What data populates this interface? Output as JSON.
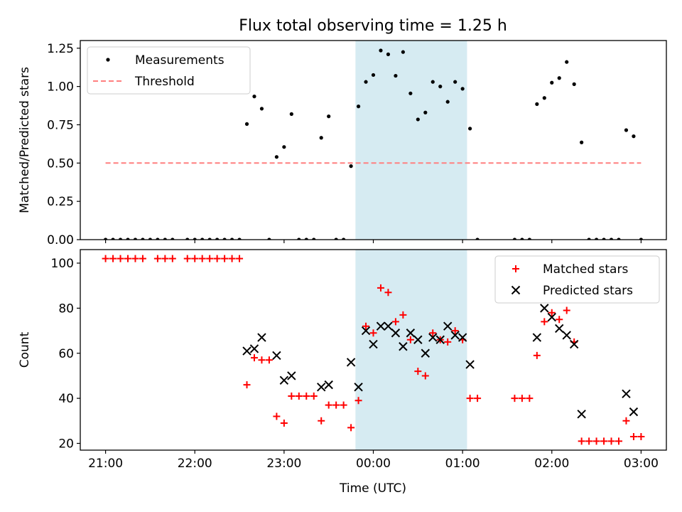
{
  "title": "Flux total observing time = 1.25 h",
  "xlabel": "Time (UTC)",
  "x_ticks": [
    "21:00",
    "22:00",
    "23:00",
    "00:00",
    "01:00",
    "02:00",
    "03:00"
  ],
  "colors": {
    "measurement": "#000000",
    "threshold": "#ff7f7f",
    "matched": "#ff0000",
    "predicted": "#000000",
    "observing_band": "#add8e6"
  },
  "chart_data": [
    {
      "type": "scatter",
      "ylabel": "Matched/Predicted stars",
      "xlim": [
        "20:43",
        "03:17"
      ],
      "ylim": [
        0,
        1.3
      ],
      "y_ticks": [
        "0.00",
        "0.25",
        "0.50",
        "0.75",
        "1.00",
        "1.25"
      ],
      "observing_window": [
        "23:48",
        "01:03"
      ],
      "legend_position": "upper-left",
      "series": [
        {
          "name": "Measurements",
          "marker": "dot",
          "points": [
            [
              "21:00",
              0
            ],
            [
              "21:05",
              0
            ],
            [
              "21:10",
              0
            ],
            [
              "21:15",
              0
            ],
            [
              "21:20",
              0
            ],
            [
              "21:25",
              0
            ],
            [
              "21:30",
              0
            ],
            [
              "21:35",
              0
            ],
            [
              "21:40",
              0
            ],
            [
              "21:45",
              0
            ],
            [
              "21:55",
              0
            ],
            [
              "22:00",
              0
            ],
            [
              "22:05",
              0
            ],
            [
              "22:10",
              0
            ],
            [
              "22:15",
              0
            ],
            [
              "22:20",
              0
            ],
            [
              "22:25",
              0
            ],
            [
              "22:30",
              0
            ],
            [
              "22:35",
              0.755
            ],
            [
              "22:40",
              0.935
            ],
            [
              "22:45",
              0.855
            ],
            [
              "22:50",
              0
            ],
            [
              "22:55",
              0.54
            ],
            [
              "23:00",
              0.605
            ],
            [
              "23:05",
              0.82
            ],
            [
              "23:10",
              0
            ],
            [
              "23:15",
              0
            ],
            [
              "23:20",
              0
            ],
            [
              "23:25",
              0.665
            ],
            [
              "23:30",
              0.805
            ],
            [
              "23:35",
              0
            ],
            [
              "23:40",
              0
            ],
            [
              "23:45",
              0.48
            ],
            [
              "23:50",
              0.87
            ],
            [
              "23:55",
              1.03
            ],
            [
              "00:00",
              1.075
            ],
            [
              "00:05",
              1.235
            ],
            [
              "00:10",
              1.21
            ],
            [
              "00:15",
              1.07
            ],
            [
              "00:20",
              1.225
            ],
            [
              "00:25",
              0.955
            ],
            [
              "00:30",
              0.785
            ],
            [
              "00:35",
              0.83
            ],
            [
              "00:40",
              1.03
            ],
            [
              "00:45",
              1.0
            ],
            [
              "00:50",
              0.9
            ],
            [
              "00:55",
              1.03
            ],
            [
              "01:00",
              0.985
            ],
            [
              "01:05",
              0.725
            ],
            [
              "01:10",
              0
            ],
            [
              "01:35",
              0
            ],
            [
              "01:40",
              0
            ],
            [
              "01:45",
              0
            ],
            [
              "01:50",
              0.885
            ],
            [
              "01:55",
              0.925
            ],
            [
              "02:00",
              1.025
            ],
            [
              "02:05",
              1.055
            ],
            [
              "02:10",
              1.16
            ],
            [
              "02:15",
              1.015
            ],
            [
              "02:20",
              0.635
            ],
            [
              "02:25",
              0
            ],
            [
              "02:30",
              0
            ],
            [
              "02:35",
              0
            ],
            [
              "02:40",
              0
            ],
            [
              "02:45",
              0
            ],
            [
              "02:50",
              0.715
            ],
            [
              "02:55",
              0.675
            ],
            [
              "03:00",
              0
            ]
          ]
        },
        {
          "name": "Threshold",
          "style": "dashed",
          "points": [
            [
              "21:00",
              0.5
            ],
            [
              "03:00",
              0.5
            ]
          ]
        }
      ]
    },
    {
      "type": "scatter",
      "ylabel": "Count",
      "xlim": [
        "20:43",
        "03:17"
      ],
      "ylim": [
        17,
        106
      ],
      "y_ticks": [
        "20",
        "40",
        "60",
        "80",
        "100"
      ],
      "observing_window": [
        "23:48",
        "01:03"
      ],
      "legend_position": "upper-right",
      "series": [
        {
          "name": "Matched stars",
          "marker": "plus",
          "points": [
            [
              "21:00",
              102
            ],
            [
              "21:05",
              102
            ],
            [
              "21:10",
              102
            ],
            [
              "21:15",
              102
            ],
            [
              "21:20",
              102
            ],
            [
              "21:25",
              102
            ],
            [
              "21:35",
              102
            ],
            [
              "21:40",
              102
            ],
            [
              "21:45",
              102
            ],
            [
              "21:55",
              102
            ],
            [
              "22:00",
              102
            ],
            [
              "22:05",
              102
            ],
            [
              "22:10",
              102
            ],
            [
              "22:15",
              102
            ],
            [
              "22:20",
              102
            ],
            [
              "22:25",
              102
            ],
            [
              "22:30",
              102
            ],
            [
              "22:35",
              46
            ],
            [
              "22:40",
              58
            ],
            [
              "22:45",
              57
            ],
            [
              "22:50",
              57
            ],
            [
              "22:55",
              32
            ],
            [
              "23:00",
              29
            ],
            [
              "23:05",
              41
            ],
            [
              "23:10",
              41
            ],
            [
              "23:15",
              41
            ],
            [
              "23:20",
              41
            ],
            [
              "23:25",
              30
            ],
            [
              "23:30",
              37
            ],
            [
              "23:35",
              37
            ],
            [
              "23:40",
              37
            ],
            [
              "23:45",
              27
            ],
            [
              "23:50",
              39
            ],
            [
              "23:55",
              72
            ],
            [
              "00:00",
              69
            ],
            [
              "00:05",
              89
            ],
            [
              "00:10",
              87
            ],
            [
              "00:15",
              74
            ],
            [
              "00:20",
              77
            ],
            [
              "00:25",
              66
            ],
            [
              "00:30",
              52
            ],
            [
              "00:35",
              50
            ],
            [
              "00:40",
              69
            ],
            [
              "00:45",
              66
            ],
            [
              "00:50",
              65
            ],
            [
              "00:55",
              70
            ],
            [
              "01:00",
              66
            ],
            [
              "01:05",
              40
            ],
            [
              "01:10",
              40
            ],
            [
              "01:35",
              40
            ],
            [
              "01:40",
              40
            ],
            [
              "01:45",
              40
            ],
            [
              "01:50",
              59
            ],
            [
              "01:55",
              74
            ],
            [
              "02:00",
              78
            ],
            [
              "02:05",
              75
            ],
            [
              "02:10",
              79
            ],
            [
              "02:15",
              65
            ],
            [
              "02:20",
              21
            ],
            [
              "02:25",
              21
            ],
            [
              "02:30",
              21
            ],
            [
              "02:35",
              21
            ],
            [
              "02:40",
              21
            ],
            [
              "02:45",
              21
            ],
            [
              "02:50",
              30
            ],
            [
              "02:55",
              23
            ],
            [
              "03:00",
              23
            ]
          ]
        },
        {
          "name": "Predicted stars",
          "marker": "x",
          "points": [
            [
              "22:35",
              61
            ],
            [
              "22:40",
              62
            ],
            [
              "22:45",
              67
            ],
            [
              "22:55",
              59
            ],
            [
              "23:00",
              48
            ],
            [
              "23:05",
              50
            ],
            [
              "23:25",
              45
            ],
            [
              "23:30",
              46
            ],
            [
              "23:45",
              56
            ],
            [
              "23:50",
              45
            ],
            [
              "23:55",
              70
            ],
            [
              "00:00",
              64
            ],
            [
              "00:05",
              72
            ],
            [
              "00:10",
              72
            ],
            [
              "00:15",
              69
            ],
            [
              "00:20",
              63
            ],
            [
              "00:25",
              69
            ],
            [
              "00:30",
              66
            ],
            [
              "00:35",
              60
            ],
            [
              "00:40",
              67
            ],
            [
              "00:45",
              66
            ],
            [
              "00:50",
              72
            ],
            [
              "00:55",
              68
            ],
            [
              "01:00",
              67
            ],
            [
              "01:05",
              55
            ],
            [
              "01:50",
              67
            ],
            [
              "01:55",
              80
            ],
            [
              "02:00",
              76
            ],
            [
              "02:05",
              71
            ],
            [
              "02:10",
              68
            ],
            [
              "02:15",
              64
            ],
            [
              "02:20",
              33
            ],
            [
              "02:50",
              42
            ],
            [
              "02:55",
              34
            ]
          ]
        }
      ]
    }
  ]
}
